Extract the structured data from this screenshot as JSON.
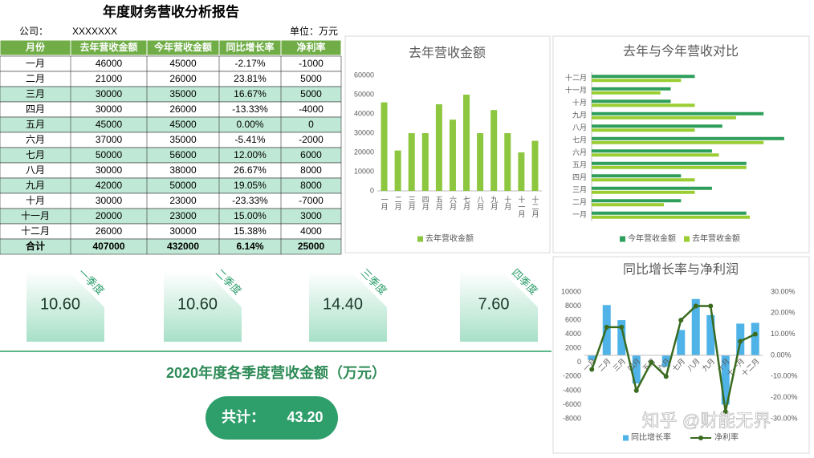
{
  "header": {
    "title": "年度财务营收分析报告",
    "company_label": "公司：",
    "company": "XXXXXXX",
    "unit": "单位：万元"
  },
  "table": {
    "columns": [
      "月份",
      "去年营收金额",
      "今年营收金额",
      "同比增长率",
      "净利率"
    ],
    "rows": [
      [
        "一月",
        46000,
        45000,
        "-2.17%",
        -1000
      ],
      [
        "二月",
        21000,
        26000,
        "23.81%",
        5000
      ],
      [
        "三月",
        30000,
        35000,
        "16.67%",
        5000
      ],
      [
        "四月",
        30000,
        26000,
        "-13.33%",
        -4000
      ],
      [
        "五月",
        45000,
        45000,
        "0.00%",
        0
      ],
      [
        "六月",
        37000,
        35000,
        "-5.41%",
        -2000
      ],
      [
        "七月",
        50000,
        56000,
        "12.00%",
        6000
      ],
      [
        "八月",
        30000,
        38000,
        "26.67%",
        8000
      ],
      [
        "九月",
        42000,
        50000,
        "19.05%",
        8000
      ],
      [
        "十月",
        30000,
        23000,
        "-23.33%",
        -7000
      ],
      [
        "十一月",
        20000,
        23000,
        "15.00%",
        3000
      ],
      [
        "十二月",
        26000,
        30000,
        "15.38%",
        4000
      ]
    ],
    "total": [
      "合计",
      407000,
      432000,
      "6.14%",
      25000
    ]
  },
  "quarters": [
    {
      "label": "一季度",
      "value": "10.60"
    },
    {
      "label": "二季度",
      "value": "10.60"
    },
    {
      "label": "三季度",
      "value": "14.40"
    },
    {
      "label": "四季度",
      "value": "7.60"
    }
  ],
  "summary": {
    "title": "2020年度各季度营收金额（万元）",
    "total_label": "共计：",
    "total": "43.20"
  },
  "watermark": "知乎 @财能无界",
  "chart_data": [
    {
      "type": "bar",
      "title": "去年营收金额",
      "categories": [
        "一月",
        "二月",
        "三月",
        "四月",
        "五月",
        "六月",
        "七月",
        "八月",
        "九月",
        "十月",
        "十一月",
        "十二月"
      ],
      "series": [
        {
          "name": "去年营收金额",
          "color": "#8dc63f",
          "values": [
            46000,
            21000,
            30000,
            30000,
            45000,
            37000,
            50000,
            30000,
            42000,
            30000,
            20000,
            26000
          ]
        }
      ],
      "ylim": [
        0,
        60000
      ],
      "yticks": [
        0,
        10000,
        20000,
        30000,
        40000,
        50000,
        60000
      ],
      "grid": false,
      "legend": "bottom"
    },
    {
      "type": "bar",
      "horizontal": true,
      "title": "去年与今年营收对比",
      "categories": [
        "一月",
        "二月",
        "三月",
        "四月",
        "五月",
        "六月",
        "七月",
        "八月",
        "九月",
        "十月",
        "十一月",
        "十二月"
      ],
      "series": [
        {
          "name": "今年营收金额",
          "color": "#2e9e5b",
          "values": [
            45000,
            26000,
            35000,
            26000,
            45000,
            35000,
            56000,
            38000,
            50000,
            23000,
            23000,
            30000
          ]
        },
        {
          "name": "去年营收金额",
          "color": "#9acd32",
          "values": [
            46000,
            21000,
            30000,
            30000,
            45000,
            37000,
            50000,
            30000,
            42000,
            30000,
            20000,
            26000
          ]
        }
      ],
      "xlim": [
        0,
        60000
      ],
      "legend": "bottom"
    },
    {
      "type": "combo",
      "title": "同比增长率与净利润",
      "categories": [
        "一月",
        "二月",
        "三月",
        "四月",
        "五月",
        "六月",
        "七月",
        "八月",
        "九月",
        "十月",
        "十一月",
        "十二月"
      ],
      "series": [
        {
          "name": "同比增长率",
          "type": "bar",
          "axis": "y2",
          "color": "#4fb3e8",
          "values": [
            -2.17,
            23.81,
            16.67,
            -13.33,
            0.0,
            -5.41,
            12.0,
            26.67,
            19.05,
            -23.33,
            15.0,
            15.38
          ]
        },
        {
          "name": "净利率",
          "type": "line",
          "axis": "y",
          "color": "#3a6b1f",
          "values": [
            -1000,
            5000,
            5000,
            -4000,
            0,
            -2000,
            6000,
            8000,
            8000,
            -7000,
            3000,
            4000
          ]
        }
      ],
      "ylim": [
        -8000,
        10000
      ],
      "yticks": [
        -8000,
        -6000,
        -4000,
        -2000,
        0,
        2000,
        4000,
        6000,
        8000,
        10000
      ],
      "y2lim": [
        -30,
        30
      ],
      "y2ticks": [
        {
          "value": -30,
          "label": "-30.00%"
        },
        {
          "value": -20,
          "label": "-20.00%"
        },
        {
          "value": -10,
          "label": "-10.00%"
        },
        {
          "value": 0,
          "label": "0.00%"
        },
        {
          "value": 10,
          "label": "10.00%"
        },
        {
          "value": 20,
          "label": "20.00%"
        },
        {
          "value": 30,
          "label": "30.00%"
        }
      ],
      "legend": "bottom"
    }
  ]
}
